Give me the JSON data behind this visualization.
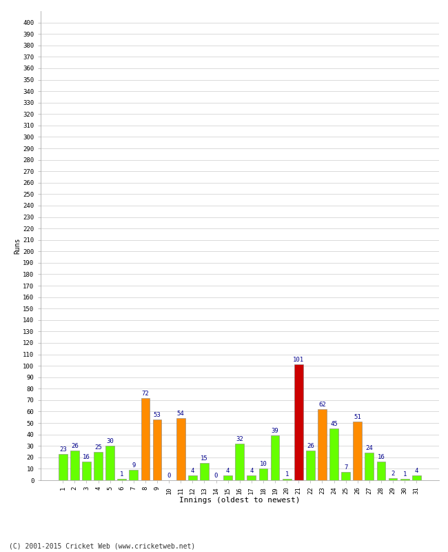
{
  "innings": [
    1,
    2,
    3,
    4,
    5,
    6,
    7,
    8,
    9,
    10,
    11,
    12,
    13,
    14,
    15,
    16,
    17,
    18,
    19,
    20,
    21,
    22,
    23,
    24,
    25,
    26,
    27,
    28,
    29,
    30,
    31
  ],
  "values": [
    23,
    26,
    16,
    25,
    30,
    1,
    9,
    72,
    53,
    0,
    54,
    4,
    15,
    0,
    4,
    32,
    4,
    10,
    39,
    1,
    101,
    26,
    62,
    45,
    7,
    51,
    24,
    16,
    2,
    1,
    4
  ],
  "colors": [
    "#66ff00",
    "#66ff00",
    "#66ff00",
    "#66ff00",
    "#66ff00",
    "#66ff00",
    "#66ff00",
    "#ff8c00",
    "#ff8c00",
    "#66ff00",
    "#ff8c00",
    "#66ff00",
    "#66ff00",
    "#66ff00",
    "#66ff00",
    "#66ff00",
    "#66ff00",
    "#66ff00",
    "#66ff00",
    "#66ff00",
    "#cc0000",
    "#66ff00",
    "#ff8c00",
    "#66ff00",
    "#66ff00",
    "#ff8c00",
    "#66ff00",
    "#66ff00",
    "#66ff00",
    "#66ff00",
    "#66ff00"
  ],
  "ylabel": "Runs",
  "xlabel": "Innings (oldest to newest)",
  "ylim": [
    0,
    410
  ],
  "yticks": [
    0,
    10,
    20,
    30,
    40,
    50,
    60,
    70,
    80,
    90,
    100,
    110,
    120,
    130,
    140,
    150,
    160,
    170,
    180,
    190,
    200,
    210,
    220,
    230,
    240,
    250,
    260,
    270,
    280,
    290,
    300,
    310,
    320,
    330,
    340,
    350,
    360,
    370,
    380,
    390,
    400
  ],
  "footer": "(C) 2001-2015 Cricket Web (www.cricketweb.net)",
  "background_color": "#ffffff",
  "bar_edge_color": "#808080",
  "label_color": "#00008b",
  "label_fontsize": 6.5,
  "tick_fontsize": 6.5,
  "ylabel_fontsize": 7,
  "xlabel_fontsize": 8,
  "footer_fontsize": 7
}
